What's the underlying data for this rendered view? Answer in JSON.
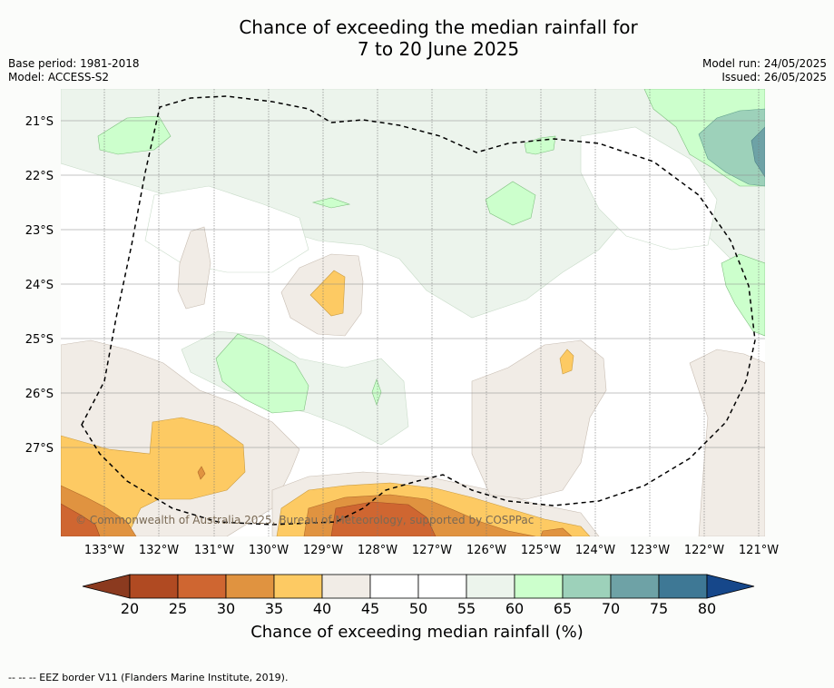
{
  "header": {
    "title_line1": "Chance of exceeding the median rainfall for",
    "title_line2": "7 to 20 June 2025",
    "base_period": "Base period: 1981-2018",
    "model": "Model: ACCESS-S2",
    "model_run": "Model run: 24/05/2025",
    "issued": "Issued: 26/05/2025"
  },
  "map": {
    "latitude_labels": [
      "21°S",
      "22°S",
      "23°S",
      "24°S",
      "25°S",
      "26°S",
      "27°S"
    ],
    "longitude_labels": [
      "133°W",
      "132°W",
      "131°W",
      "130°W",
      "129°W",
      "128°W",
      "127°W",
      "126°W",
      "125°W",
      "124°W",
      "123°W",
      "122°W",
      "121°W"
    ],
    "copyright": "© Commonwealth of Australia 2025, Bureau of Meteorology, supported by COSPPac",
    "boundary": "EEZ border"
  },
  "colorbar": {
    "ticks": [
      "20",
      "25",
      "30",
      "35",
      "40",
      "45",
      "50",
      "55",
      "60",
      "65",
      "70",
      "75",
      "80"
    ],
    "colors": [
      "#8b3a1f",
      "#b04a22",
      "#cf6631",
      "#e09340",
      "#fdca63",
      "#f1ece6",
      "#ffffff",
      "#ffffff",
      "#ecf4ec",
      "#ccffcc",
      "#9dd1ba",
      "#6ea2a6",
      "#3e7895",
      "#16478a"
    ],
    "title": "Chance of exceeding median rainfall (%)"
  },
  "footer": {
    "legend_text": "--  --  -- EEZ border V11 (Flanders Marine Institute, 2019)."
  }
}
